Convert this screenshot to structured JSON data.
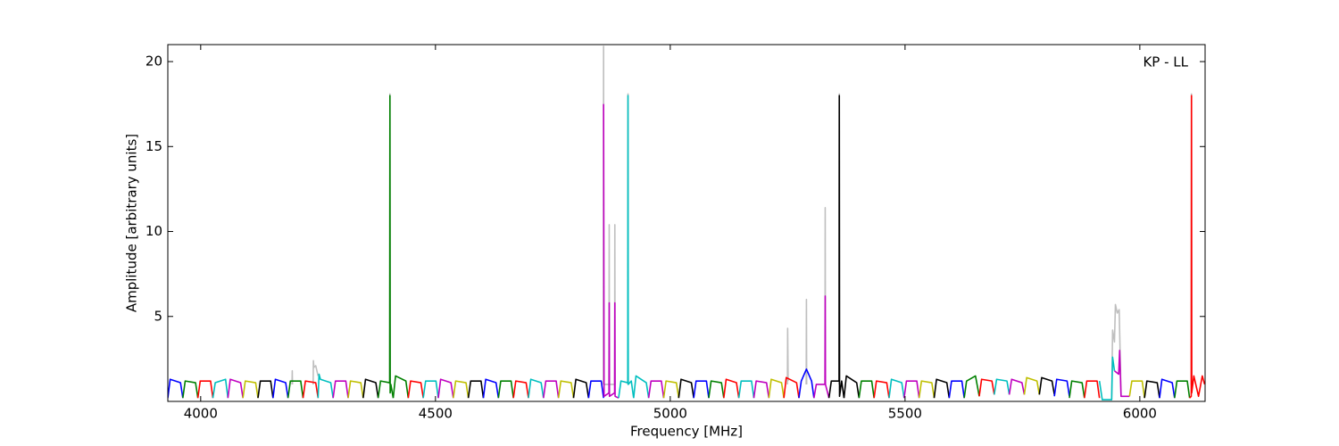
{
  "chart_data": {
    "type": "line",
    "annotation": "KP - LL",
    "xlabel": "Frequency [MHz]",
    "ylabel": "Amplitude [arbitrary units]",
    "xlim": [
      3930,
      6139
    ],
    "ylim": [
      0,
      21
    ],
    "xticks": [
      4000,
      4500,
      5000,
      5500,
      6000
    ],
    "yticks": [
      5,
      10,
      15,
      20
    ],
    "series": [
      {
        "color": "#bfbfbf",
        "x": [
          4194.5,
          4195,
          4195.5,
          null,
          4239.5,
          4240,
          4241,
          4245,
          4250,
          null,
          4402.5,
          4403,
          4403.5,
          null,
          4857.5,
          4858,
          4858.5,
          4869.5,
          4870,
          4870.5,
          4881.5,
          4882,
          4882.5,
          null,
          4909.5,
          4910,
          4910.5,
          null,
          5249.5,
          5250,
          5251,
          null,
          5289.5,
          5290,
          5290.5,
          null,
          5329.5,
          5330,
          5330.5,
          null,
          5359.5,
          5360,
          5360.5,
          null,
          5940,
          5942,
          5946,
          5948,
          5952,
          5956,
          5960,
          null,
          6109.5,
          6110,
          6110.5
        ],
        "values": [
          1.0,
          1.8,
          1.0,
          null,
          1.0,
          2.4,
          2.0,
          2.1,
          1.5,
          null,
          1.0,
          18.1,
          1.0,
          null,
          1.0,
          20.9,
          1.0,
          1.0,
          10.4,
          1.0,
          1.0,
          10.4,
          1.0,
          null,
          1.0,
          18.1,
          1.0,
          null,
          1.0,
          4.3,
          1.2,
          null,
          1.0,
          6.0,
          1.0,
          null,
          1.0,
          11.4,
          1.0,
          null,
          1.0,
          18.1,
          1.0,
          null,
          0.1,
          4.2,
          3.5,
          5.7,
          5.2,
          5.4,
          0.4,
          null,
          1.0,
          18.1,
          1.0
        ]
      },
      {
        "color": "#0000ff",
        "x": [
          3930,
          3935,
          3957,
          3962
        ],
        "values": [
          0.2,
          1.3,
          1.1,
          0.2
        ]
      },
      {
        "color": "#008000",
        "x": [
          3962,
          3967,
          3989,
          3994
        ],
        "values": [
          0.2,
          1.2,
          1.1,
          0.2
        ]
      },
      {
        "color": "#ff0000",
        "x": [
          3994,
          3999,
          4021,
          4026
        ],
        "values": [
          0.2,
          1.2,
          1.2,
          0.2
        ]
      },
      {
        "color": "#00bfbf",
        "x": [
          4026,
          4031,
          4053,
          4058
        ],
        "values": [
          0.2,
          1.1,
          1.3,
          0.2
        ]
      },
      {
        "color": "#bf00bf",
        "x": [
          4058,
          4063,
          4085,
          4090
        ],
        "values": [
          0.2,
          1.3,
          1.1,
          0.2
        ]
      },
      {
        "color": "#bfbf00",
        "x": [
          4090,
          4095,
          4117,
          4122
        ],
        "values": [
          0.2,
          1.2,
          1.1,
          0.2
        ]
      },
      {
        "color": "#000000",
        "x": [
          4122,
          4127,
          4149,
          4154
        ],
        "values": [
          0.2,
          1.2,
          1.2,
          0.2
        ]
      },
      {
        "color": "#0000ff",
        "x": [
          4154,
          4159,
          4181,
          4186
        ],
        "values": [
          0.2,
          1.3,
          1.1,
          0.2
        ]
      },
      {
        "color": "#008000",
        "x": [
          4186,
          4191,
          4213,
          4218
        ],
        "values": [
          0.2,
          1.2,
          1.2,
          0.2
        ]
      },
      {
        "color": "#ff0000",
        "x": [
          4218,
          4223,
          4245,
          4250
        ],
        "values": [
          0.2,
          1.2,
          1.1,
          0.2
        ]
      },
      {
        "color": "#00bfbf",
        "x": [
          4250,
          4252,
          4255,
          4277,
          4282
        ],
        "values": [
          0.2,
          1.6,
          1.3,
          1.1,
          0.2
        ]
      },
      {
        "color": "#bf00bf",
        "x": [
          4282,
          4287,
          4309,
          4314
        ],
        "values": [
          0.2,
          1.2,
          1.2,
          0.2
        ]
      },
      {
        "color": "#bfbf00",
        "x": [
          4314,
          4319,
          4341,
          4346
        ],
        "values": [
          0.2,
          1.2,
          1.1,
          0.2
        ]
      },
      {
        "color": "#000000",
        "x": [
          4346,
          4351,
          4373,
          4378
        ],
        "values": [
          0.2,
          1.3,
          1.1,
          0.2
        ]
      },
      {
        "color": "#008000",
        "x": [
          4378,
          4383,
          4402.5,
          4403,
          4403.5,
          4405,
          4410
        ],
        "values": [
          0.2,
          1.2,
          1.1,
          18,
          0.5,
          1.0,
          0.2
        ]
      },
      {
        "color": "#008000",
        "x": [
          4410,
          4415,
          4437,
          4442
        ],
        "values": [
          0.2,
          1.5,
          1.2,
          0.2
        ]
      },
      {
        "color": "#ff0000",
        "x": [
          4442,
          4447,
          4469,
          4474
        ],
        "values": [
          0.2,
          1.2,
          1.1,
          0.2
        ]
      },
      {
        "color": "#00bfbf",
        "x": [
          4474,
          4479,
          4501,
          4506
        ],
        "values": [
          0.2,
          1.2,
          1.2,
          0.2
        ]
      },
      {
        "color": "#bf00bf",
        "x": [
          4506,
          4511,
          4533,
          4538
        ],
        "values": [
          0.2,
          1.3,
          1.1,
          0.2
        ]
      },
      {
        "color": "#bfbf00",
        "x": [
          4538,
          4543,
          4565,
          4570
        ],
        "values": [
          0.2,
          1.2,
          1.1,
          0.2
        ]
      },
      {
        "color": "#000000",
        "x": [
          4570,
          4575,
          4597,
          4602
        ],
        "values": [
          0.2,
          1.2,
          1.2,
          0.2
        ]
      },
      {
        "color": "#0000ff",
        "x": [
          4602,
          4607,
          4629,
          4634
        ],
        "values": [
          0.2,
          1.3,
          1.1,
          0.2
        ]
      },
      {
        "color": "#008000",
        "x": [
          4634,
          4639,
          4661,
          4666
        ],
        "values": [
          0.2,
          1.2,
          1.2,
          0.2
        ]
      },
      {
        "color": "#ff0000",
        "x": [
          4666,
          4671,
          4693,
          4698
        ],
        "values": [
          0.2,
          1.2,
          1.1,
          0.2
        ]
      },
      {
        "color": "#00bfbf",
        "x": [
          4698,
          4703,
          4725,
          4730
        ],
        "values": [
          0.2,
          1.3,
          1.1,
          0.2
        ]
      },
      {
        "color": "#bf00bf",
        "x": [
          4730,
          4735,
          4757,
          4762
        ],
        "values": [
          0.2,
          1.2,
          1.2,
          0.2
        ]
      },
      {
        "color": "#bfbf00",
        "x": [
          4762,
          4767,
          4789,
          4794
        ],
        "values": [
          0.2,
          1.2,
          1.1,
          0.2
        ]
      },
      {
        "color": "#000000",
        "x": [
          4794,
          4799,
          4821,
          4826
        ],
        "values": [
          0.2,
          1.3,
          1.1,
          0.2
        ]
      },
      {
        "color": "#0000ff",
        "x": [
          4826,
          4831,
          4853,
          4858
        ],
        "values": [
          0.2,
          1.2,
          1.2,
          0.2
        ]
      },
      {
        "color": "#bf00bf",
        "x": [
          4858,
          4859,
          4869.5,
          4870,
          4870.5,
          4881.5,
          4882,
          4882.5,
          4890
        ],
        "values": [
          17.5,
          0.3,
          0.5,
          5.8,
          0.3,
          0.5,
          5.8,
          0.3,
          0.2
        ]
      },
      {
        "color": "#00bfbf",
        "x": [
          4890,
          4895,
          4909.5,
          4910,
          4910.5,
          4917,
          4922
        ],
        "values": [
          0.2,
          1.2,
          1.1,
          18,
          1.0,
          1.2,
          0.2
        ]
      },
      {
        "color": "#00bfbf",
        "x": [
          4922,
          4927,
          4949,
          4954
        ],
        "values": [
          0.2,
          1.5,
          1.1,
          0.2
        ]
      },
      {
        "color": "#bf00bf",
        "x": [
          4954,
          4959,
          4981,
          4986
        ],
        "values": [
          0.2,
          1.2,
          1.2,
          0.2
        ]
      },
      {
        "color": "#bfbf00",
        "x": [
          4986,
          4991,
          5013,
          5018
        ],
        "values": [
          0.2,
          1.2,
          1.1,
          0.2
        ]
      },
      {
        "color": "#000000",
        "x": [
          5018,
          5023,
          5045,
          5050
        ],
        "values": [
          0.2,
          1.3,
          1.1,
          0.2
        ]
      },
      {
        "color": "#0000ff",
        "x": [
          5050,
          5055,
          5077,
          5082
        ],
        "values": [
          0.2,
          1.2,
          1.2,
          0.2
        ]
      },
      {
        "color": "#008000",
        "x": [
          5082,
          5087,
          5109,
          5114
        ],
        "values": [
          0.2,
          1.2,
          1.1,
          0.2
        ]
      },
      {
        "color": "#ff0000",
        "x": [
          5114,
          5119,
          5141,
          5146
        ],
        "values": [
          0.2,
          1.3,
          1.1,
          0.2
        ]
      },
      {
        "color": "#00bfbf",
        "x": [
          5146,
          5151,
          5173,
          5178
        ],
        "values": [
          0.2,
          1.2,
          1.2,
          0.2
        ]
      },
      {
        "color": "#bf00bf",
        "x": [
          5178,
          5183,
          5205,
          5210
        ],
        "values": [
          0.2,
          1.2,
          1.1,
          0.2
        ]
      },
      {
        "color": "#bfbf00",
        "x": [
          5210,
          5215,
          5237,
          5242
        ],
        "values": [
          0.2,
          1.3,
          1.1,
          0.2
        ]
      },
      {
        "color": "#ff0000",
        "x": [
          5242,
          5247,
          5269,
          5274
        ],
        "values": [
          0.2,
          1.4,
          1.1,
          0.2
        ]
      },
      {
        "color": "#0000ff",
        "x": [
          5274,
          5279,
          5290,
          5301,
          5306
        ],
        "values": [
          0.2,
          1.2,
          1.9,
          1.2,
          0.2
        ]
      },
      {
        "color": "#bf00bf",
        "x": [
          5306,
          5311,
          5329.5,
          5330,
          5330.5,
          5338
        ],
        "values": [
          0.2,
          1.0,
          1.0,
          6.2,
          1.0,
          0.2
        ]
      },
      {
        "color": "#000000",
        "x": [
          5338,
          5343,
          5359.5,
          5360,
          5360.5,
          5365,
          5370
        ],
        "values": [
          0.2,
          1.2,
          1.2,
          18,
          0.3,
          1.2,
          0.2
        ]
      },
      {
        "color": "#000000",
        "x": [
          5370,
          5375,
          5397,
          5402
        ],
        "values": [
          0.2,
          1.5,
          1.1,
          0.2
        ]
      },
      {
        "color": "#008000",
        "x": [
          5402,
          5407,
          5429,
          5434
        ],
        "values": [
          0.2,
          1.2,
          1.2,
          0.2
        ]
      },
      {
        "color": "#ff0000",
        "x": [
          5434,
          5439,
          5461,
          5466
        ],
        "values": [
          0.2,
          1.2,
          1.1,
          0.2
        ]
      },
      {
        "color": "#00bfbf",
        "x": [
          5466,
          5471,
          5493,
          5498
        ],
        "values": [
          0.2,
          1.3,
          1.1,
          0.2
        ]
      },
      {
        "color": "#bf00bf",
        "x": [
          5498,
          5503,
          5525,
          5530
        ],
        "values": [
          0.2,
          1.2,
          1.2,
          0.2
        ]
      },
      {
        "color": "#bfbf00",
        "x": [
          5530,
          5535,
          5557,
          5562
        ],
        "values": [
          0.2,
          1.2,
          1.1,
          0.2
        ]
      },
      {
        "color": "#000000",
        "x": [
          5562,
          5567,
          5589,
          5594
        ],
        "values": [
          0.2,
          1.3,
          1.1,
          0.2
        ]
      },
      {
        "color": "#0000ff",
        "x": [
          5594,
          5599,
          5621,
          5626
        ],
        "values": [
          0.2,
          1.2,
          1.2,
          0.2
        ]
      },
      {
        "color": "#008000",
        "x": [
          5626,
          5631,
          5650,
          5658
        ],
        "values": [
          0.2,
          1.2,
          1.5,
          0.3
        ]
      },
      {
        "color": "#ff0000",
        "x": [
          5658,
          5663,
          5685,
          5690
        ],
        "values": [
          0.3,
          1.3,
          1.2,
          0.4
        ]
      },
      {
        "color": "#00bfbf",
        "x": [
          5690,
          5695,
          5717,
          5722
        ],
        "values": [
          0.4,
          1.3,
          1.2,
          0.4
        ]
      },
      {
        "color": "#bf00bf",
        "x": [
          5722,
          5727,
          5749,
          5754
        ],
        "values": [
          0.4,
          1.3,
          1.1,
          0.4
        ]
      },
      {
        "color": "#bfbf00",
        "x": [
          5754,
          5759,
          5781,
          5786
        ],
        "values": [
          0.4,
          1.4,
          1.2,
          0.4
        ]
      },
      {
        "color": "#000000",
        "x": [
          5786,
          5791,
          5813,
          5818
        ],
        "values": [
          0.4,
          1.4,
          1.2,
          0.4
        ]
      },
      {
        "color": "#0000ff",
        "x": [
          5818,
          5823,
          5845,
          5850
        ],
        "values": [
          0.3,
          1.3,
          1.2,
          0.3
        ]
      },
      {
        "color": "#008000",
        "x": [
          5850,
          5855,
          5877,
          5882
        ],
        "values": [
          0.2,
          1.2,
          1.1,
          0.2
        ]
      },
      {
        "color": "#ff0000",
        "x": [
          5882,
          5887,
          5909,
          5914
        ],
        "values": [
          0.2,
          1.2,
          1.2,
          0.2
        ]
      },
      {
        "color": "#00bfbf",
        "x": [
          5914,
          5920,
          5940,
          5942,
          5946
        ],
        "values": [
          1.2,
          0.1,
          0.1,
          2.6,
          1.8
        ]
      },
      {
        "color": "#bf00bf",
        "x": [
          5946,
          5955,
          5957,
          5960,
          5978
        ],
        "values": [
          1.8,
          1.6,
          3.0,
          0.3,
          0.3
        ]
      },
      {
        "color": "#bfbf00",
        "x": [
          5978,
          5983,
          6005,
          6010
        ],
        "values": [
          0.3,
          1.2,
          1.2,
          0.2
        ]
      },
      {
        "color": "#000000",
        "x": [
          6010,
          6015,
          6037,
          6042
        ],
        "values": [
          0.2,
          1.2,
          1.1,
          0.2
        ]
      },
      {
        "color": "#0000ff",
        "x": [
          6042,
          6047,
          6069,
          6074
        ],
        "values": [
          0.2,
          1.3,
          1.1,
          0.2
        ]
      },
      {
        "color": "#008000",
        "x": [
          6074,
          6079,
          6101,
          6106
        ],
        "values": [
          0.2,
          1.2,
          1.2,
          0.2
        ]
      },
      {
        "color": "#ff0000",
        "x": [
          6106,
          6109.5,
          6110,
          6110.5,
          6115,
          6125,
          6133,
          6138
        ],
        "values": [
          0.2,
          0.3,
          18,
          0.5,
          1.5,
          0.3,
          1.5,
          1.0
        ]
      }
    ]
  }
}
